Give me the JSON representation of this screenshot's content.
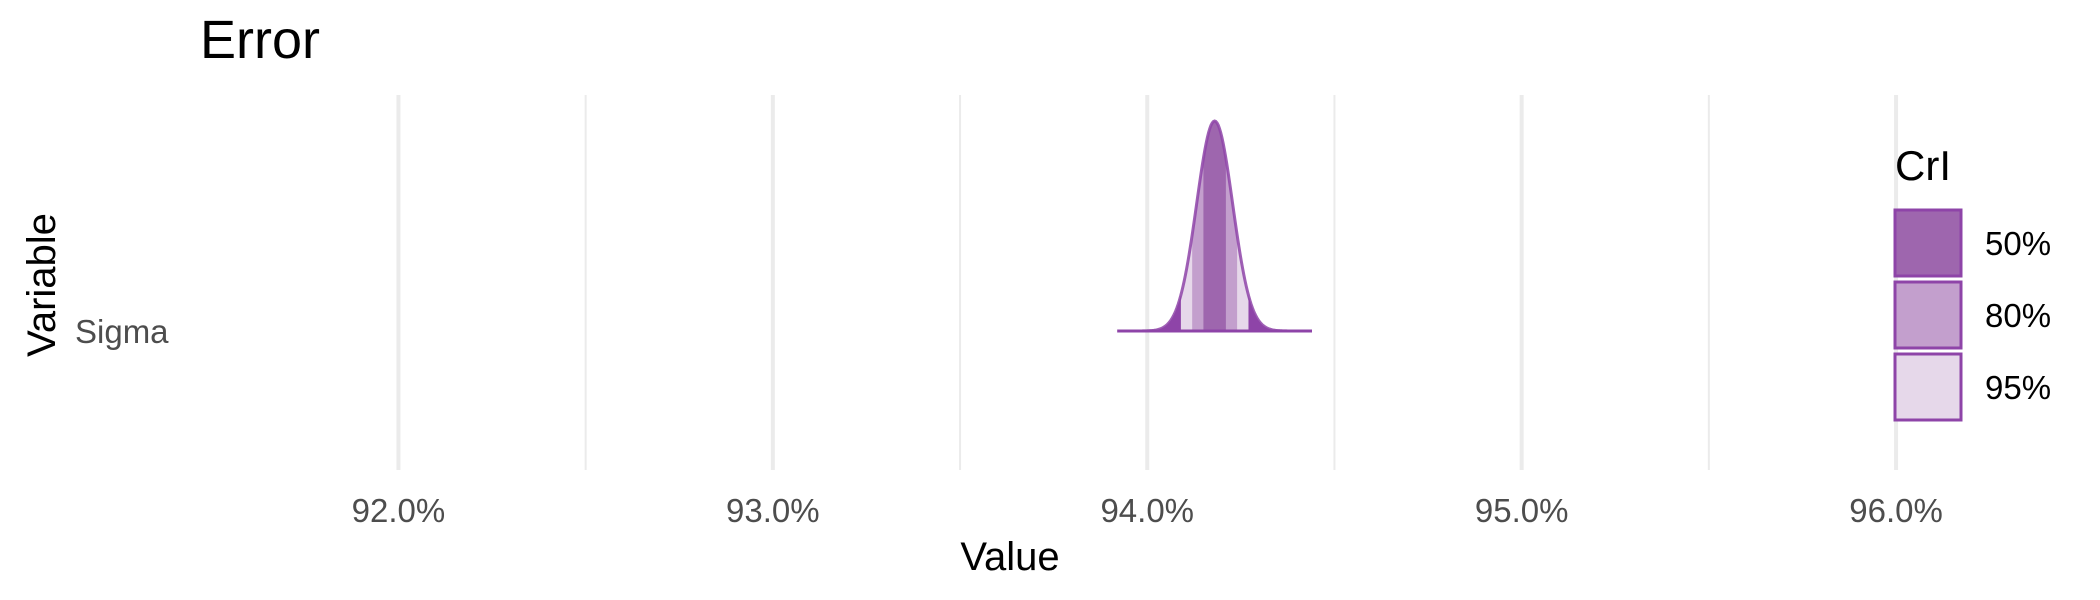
{
  "chart_data": {
    "type": "density_ridge",
    "title": "Error",
    "xlabel": "Value",
    "ylabel": "Variable",
    "xlim": [
      91.47,
      95.69
    ],
    "x_ticks": [
      92.0,
      93.0,
      94.0,
      95.0,
      96.0
    ],
    "x_tick_labels": [
      "92.0%",
      "93.0%",
      "94.0%",
      "95.0%",
      "96.0%"
    ],
    "x_minor_ticks": [
      92.5,
      93.5,
      94.5,
      95.5
    ],
    "grid": true,
    "categories": [
      "Sigma"
    ],
    "series": [
      {
        "category": "Sigma",
        "mean": 94.18,
        "sd": 0.048,
        "range": [
          93.92,
          94.44
        ],
        "intervals": [
          {
            "level": "50%",
            "low": 94.15,
            "high": 94.21
          },
          {
            "level": "80%",
            "low": 94.12,
            "high": 94.24
          },
          {
            "level": "95%",
            "low": 94.09,
            "high": 94.27
          }
        ]
      }
    ],
    "legend": {
      "title": "CrI",
      "position": "right",
      "items": [
        {
          "label": "50%",
          "color": "#9e66ae"
        },
        {
          "label": "80%",
          "color": "#c39fcd"
        },
        {
          "label": "95%",
          "color": "#e6d8ea"
        }
      ]
    },
    "colors": {
      "outline": "#8e44a8",
      "tail": "#8e44a8",
      "grid": "#ebebeb",
      "tick_text": "#4d4d4d",
      "text": "#000000"
    }
  }
}
